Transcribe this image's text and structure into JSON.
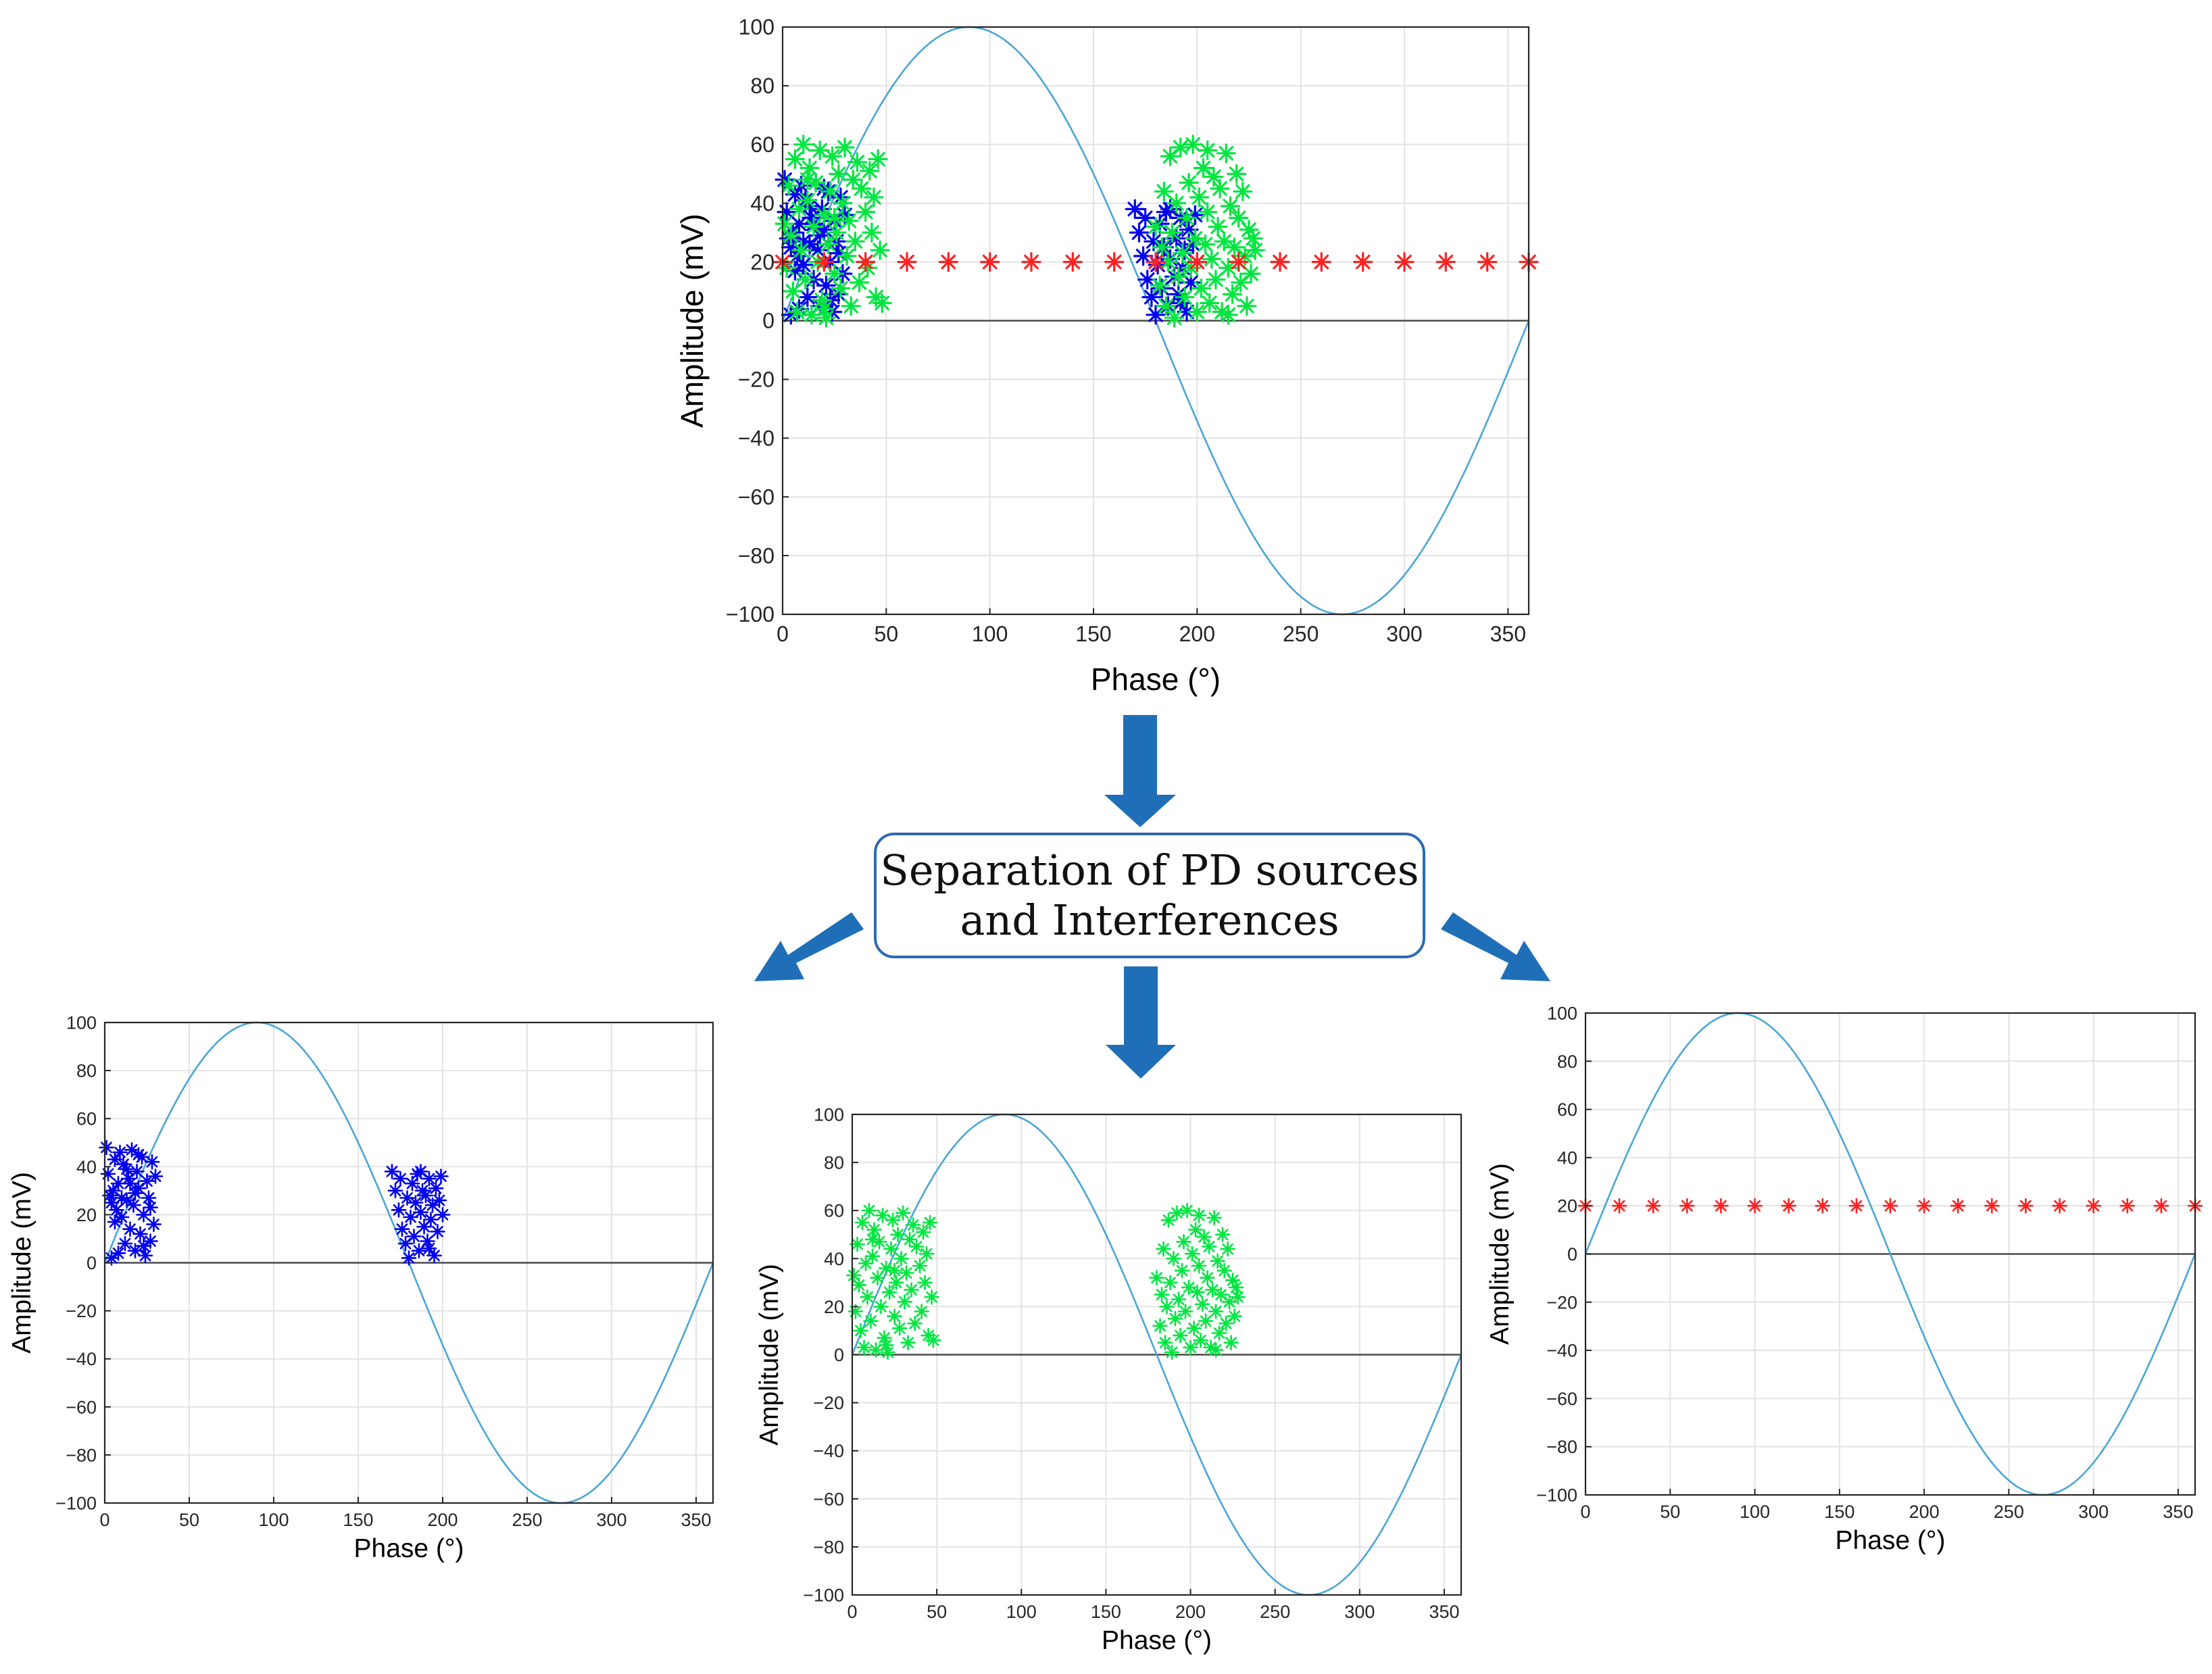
{
  "separation_box": {
    "line1": "Separation of PD sources",
    "line2": "and Interferences"
  },
  "colors": {
    "arrow": "#1f6fb8",
    "sine": "#4aa6d6",
    "blue_source": "#0000ee",
    "green_source": "#00e640",
    "interference": "#ff2020",
    "grid": "#e3e3e3"
  },
  "chart_data": [
    {
      "id": "combined",
      "type": "scatter",
      "title": "",
      "xlabel": "Phase (°)",
      "ylabel": "Amplitude (mV)",
      "xlim": [
        0,
        360
      ],
      "ylim": [
        -100,
        100
      ],
      "xticks": [
        0,
        50,
        100,
        150,
        200,
        250,
        300,
        350
      ],
      "yticks": [
        -100,
        -80,
        -60,
        -40,
        -20,
        0,
        20,
        40,
        60,
        80,
        100
      ],
      "grid": true,
      "reference": {
        "name": "sine",
        "amplitude": 100,
        "period": 360
      },
      "series": [
        "blue",
        "green",
        "red"
      ]
    },
    {
      "id": "blue-source",
      "type": "scatter",
      "title": "",
      "xlabel": "Phase (°)",
      "ylabel": "Amplitude (mV)",
      "xlim": [
        0,
        360
      ],
      "ylim": [
        -100,
        100
      ],
      "xticks": [
        0,
        50,
        100,
        150,
        200,
        250,
        300,
        350
      ],
      "yticks": [
        -100,
        -80,
        -60,
        -40,
        -20,
        0,
        20,
        40,
        60,
        80,
        100
      ],
      "grid": true,
      "reference": {
        "name": "sine",
        "amplitude": 100,
        "period": 360
      },
      "series": [
        "blue"
      ]
    },
    {
      "id": "green-source",
      "type": "scatter",
      "title": "",
      "xlabel": "Phase (°)",
      "ylabel": "Amplitude (mV)",
      "xlim": [
        0,
        360
      ],
      "ylim": [
        -100,
        100
      ],
      "xticks": [
        0,
        50,
        100,
        150,
        200,
        250,
        300,
        350
      ],
      "yticks": [
        -100,
        -80,
        -60,
        -40,
        -20,
        0,
        20,
        40,
        60,
        80,
        100
      ],
      "grid": true,
      "reference": {
        "name": "sine",
        "amplitude": 100,
        "period": 360
      },
      "series": [
        "green"
      ]
    },
    {
      "id": "interference",
      "type": "scatter",
      "title": "",
      "xlabel": "Phase (°)",
      "ylabel": "Amplitude (mV)",
      "xlim": [
        0,
        360
      ],
      "ylim": [
        -100,
        100
      ],
      "xticks": [
        0,
        50,
        100,
        150,
        200,
        250,
        300,
        350
      ],
      "yticks": [
        -100,
        -80,
        -60,
        -40,
        -20,
        0,
        20,
        40,
        60,
        80,
        100
      ],
      "grid": true,
      "reference": {
        "name": "sine",
        "amplitude": 100,
        "period": 360
      },
      "series": [
        "red"
      ]
    }
  ],
  "series_points": {
    "blue": [
      [
        1,
        48
      ],
      [
        2,
        37
      ],
      [
        3,
        28
      ],
      [
        4,
        2
      ],
      [
        5,
        30
      ],
      [
        6,
        43
      ],
      [
        7,
        22
      ],
      [
        8,
        33
      ],
      [
        9,
        46
      ],
      [
        10,
        19
      ],
      [
        11,
        41
      ],
      [
        12,
        8
      ],
      [
        13,
        26
      ],
      [
        14,
        35
      ],
      [
        15,
        14
      ],
      [
        16,
        47
      ],
      [
        17,
        24
      ],
      [
        18,
        5
      ],
      [
        19,
        38
      ],
      [
        20,
        31
      ],
      [
        21,
        12
      ],
      [
        22,
        44
      ],
      [
        23,
        20
      ],
      [
        24,
        3
      ],
      [
        25,
        34
      ],
      [
        26,
        27
      ],
      [
        27,
        9
      ],
      [
        28,
        42
      ],
      [
        29,
        16
      ],
      [
        30,
        36
      ],
      [
        4,
        25
      ],
      [
        8,
        4
      ],
      [
        13,
        39
      ],
      [
        18,
        29
      ],
      [
        23,
        7
      ],
      [
        27,
        23
      ],
      [
        15,
        33
      ],
      [
        20,
        45
      ],
      [
        6,
        17
      ],
      [
        10,
        27
      ],
      [
        170,
        38
      ],
      [
        172,
        30
      ],
      [
        174,
        22
      ],
      [
        175,
        35
      ],
      [
        176,
        14
      ],
      [
        178,
        8
      ],
      [
        179,
        27
      ],
      [
        180,
        2
      ],
      [
        181,
        19
      ],
      [
        182,
        33
      ],
      [
        183,
        11
      ],
      [
        184,
        25
      ],
      [
        185,
        37
      ],
      [
        186,
        5
      ],
      [
        187,
        21
      ],
      [
        188,
        30
      ],
      [
        189,
        15
      ],
      [
        190,
        28
      ],
      [
        191,
        9
      ],
      [
        192,
        35
      ],
      [
        193,
        18
      ],
      [
        194,
        24
      ],
      [
        195,
        3
      ],
      [
        196,
        31
      ],
      [
        197,
        13
      ],
      [
        198,
        26
      ],
      [
        199,
        36
      ],
      [
        200,
        20
      ],
      [
        187,
        38
      ],
      [
        192,
        6
      ]
    ],
    "green": [
      [
        1,
        33
      ],
      [
        2,
        18
      ],
      [
        3,
        46
      ],
      [
        4,
        29
      ],
      [
        5,
        10
      ],
      [
        6,
        55
      ],
      [
        7,
        3
      ],
      [
        8,
        38
      ],
      [
        9,
        24
      ],
      [
        10,
        60
      ],
      [
        11,
        14
      ],
      [
        12,
        41
      ],
      [
        13,
        52
      ],
      [
        14,
        2
      ],
      [
        15,
        32
      ],
      [
        16,
        47
      ],
      [
        17,
        20
      ],
      [
        18,
        58
      ],
      [
        19,
        7
      ],
      [
        20,
        36
      ],
      [
        21,
        1
      ],
      [
        22,
        26
      ],
      [
        23,
        44
      ],
      [
        24,
        56
      ],
      [
        25,
        16
      ],
      [
        26,
        30
      ],
      [
        27,
        50
      ],
      [
        28,
        11
      ],
      [
        29,
        40
      ],
      [
        30,
        59
      ],
      [
        31,
        22
      ],
      [
        32,
        34
      ],
      [
        33,
        5
      ],
      [
        34,
        48
      ],
      [
        35,
        27
      ],
      [
        36,
        54
      ],
      [
        37,
        13
      ],
      [
        38,
        45
      ],
      [
        40,
        37
      ],
      [
        41,
        18
      ],
      [
        42,
        51
      ],
      [
        43,
        30
      ],
      [
        44,
        42
      ],
      [
        45,
        8
      ],
      [
        46,
        55
      ],
      [
        47,
        24
      ],
      [
        48,
        6
      ],
      [
        20,
        4
      ],
      [
        12,
        48
      ],
      [
        25,
        35
      ],
      [
        180,
        32
      ],
      [
        182,
        12
      ],
      [
        183,
        25
      ],
      [
        184,
        44
      ],
      [
        185,
        5
      ],
      [
        186,
        20
      ],
      [
        187,
        56
      ],
      [
        188,
        30
      ],
      [
        189,
        1
      ],
      [
        190,
        40
      ],
      [
        191,
        15
      ],
      [
        192,
        59
      ],
      [
        193,
        23
      ],
      [
        194,
        8
      ],
      [
        195,
        35
      ],
      [
        196,
        47
      ],
      [
        197,
        18
      ],
      [
        198,
        60
      ],
      [
        199,
        28
      ],
      [
        200,
        3
      ],
      [
        201,
        42
      ],
      [
        202,
        11
      ],
      [
        203,
        52
      ],
      [
        204,
        26
      ],
      [
        205,
        37
      ],
      [
        206,
        6
      ],
      [
        207,
        21
      ],
      [
        208,
        49
      ],
      [
        209,
        14
      ],
      [
        210,
        32
      ],
      [
        211,
        45
      ],
      [
        212,
        3
      ],
      [
        213,
        27
      ],
      [
        214,
        57
      ],
      [
        215,
        18
      ],
      [
        216,
        39
      ],
      [
        217,
        9
      ],
      [
        218,
        25
      ],
      [
        219,
        50
      ],
      [
        220,
        35
      ],
      [
        221,
        13
      ],
      [
        222,
        44
      ],
      [
        223,
        22
      ],
      [
        224,
        5
      ],
      [
        225,
        31
      ],
      [
        226,
        16
      ],
      [
        227,
        28
      ],
      [
        228,
        24
      ],
      [
        205,
        58
      ],
      [
        215,
        2
      ]
    ],
    "red": [
      [
        0,
        20
      ],
      [
        20,
        20
      ],
      [
        40,
        20
      ],
      [
        60,
        20
      ],
      [
        80,
        20
      ],
      [
        100,
        20
      ],
      [
        120,
        20
      ],
      [
        140,
        20
      ],
      [
        160,
        20
      ],
      [
        180,
        20
      ],
      [
        200,
        20
      ],
      [
        220,
        20
      ],
      [
        240,
        20
      ],
      [
        260,
        20
      ],
      [
        280,
        20
      ],
      [
        300,
        20
      ],
      [
        320,
        20
      ],
      [
        340,
        20
      ],
      [
        360,
        20
      ]
    ]
  }
}
